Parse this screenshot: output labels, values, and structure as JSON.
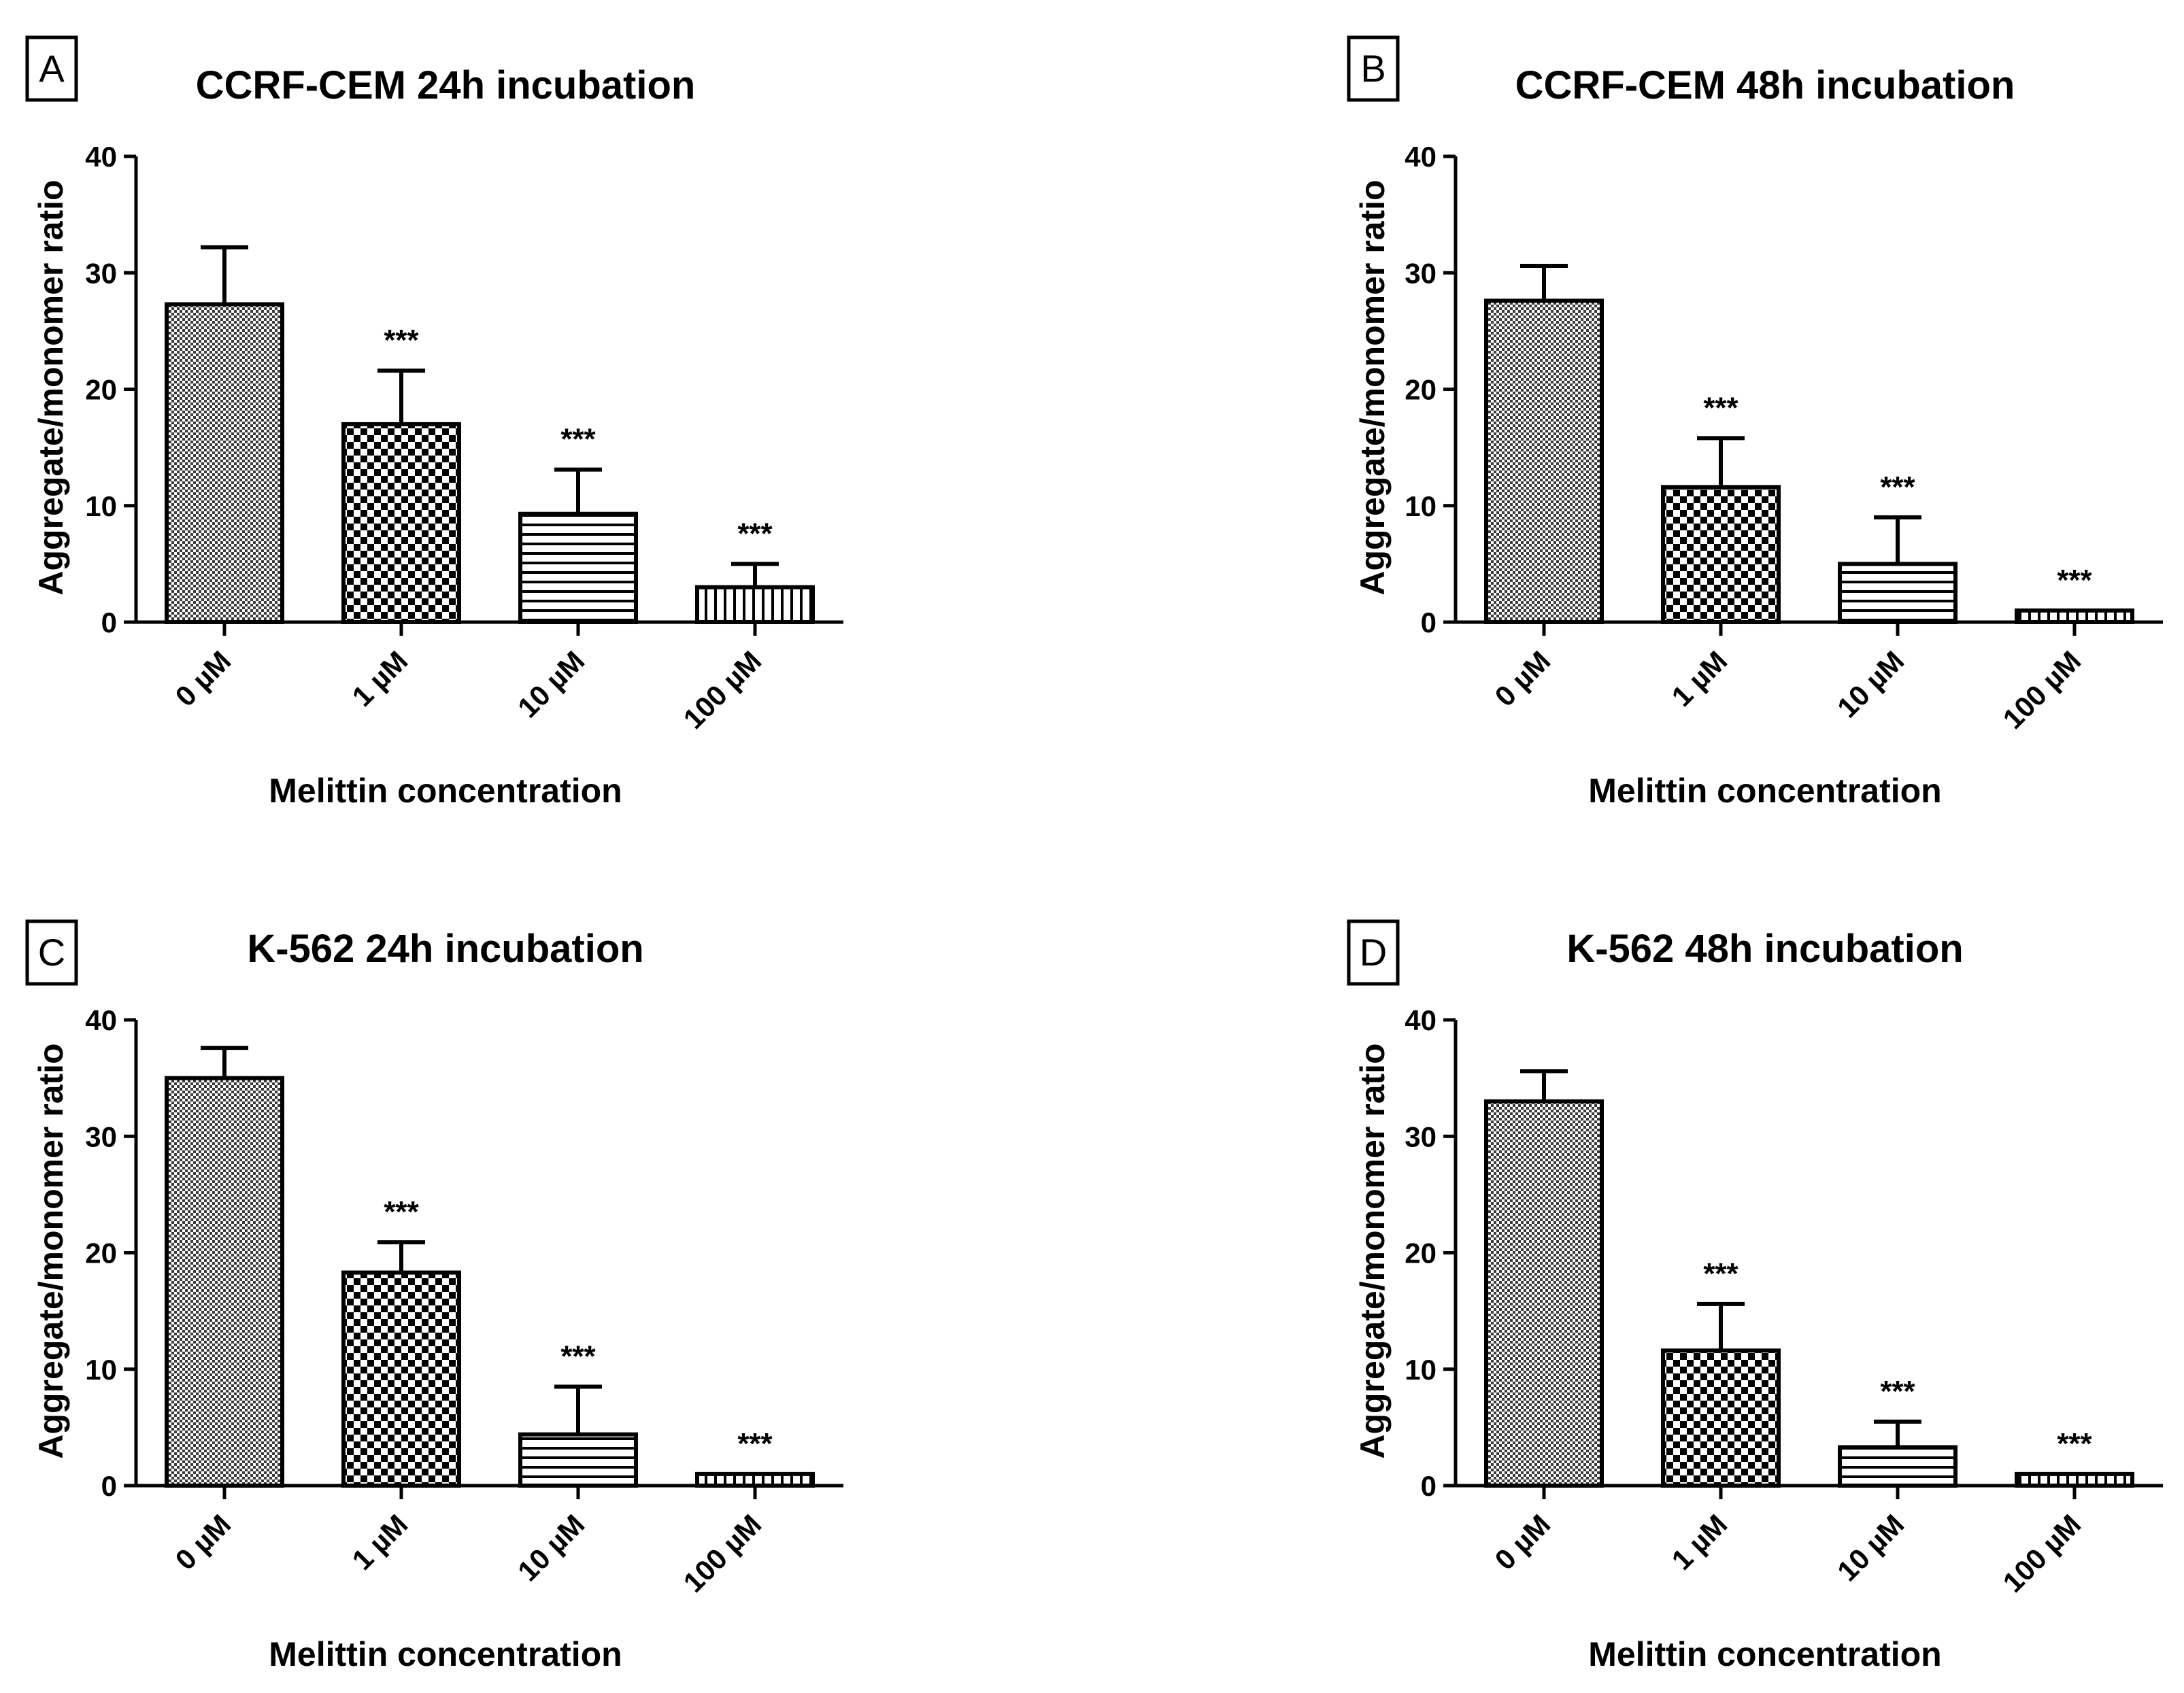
{
  "chart_data": [
    {
      "panel": "A",
      "type": "bar",
      "title": "CCRF-CEM 24h incubation",
      "xlabel": "Melittin concentration",
      "ylabel": "Aggregate/monomer ratio",
      "ylim": [
        0,
        40
      ],
      "yticks": [
        0,
        10,
        20,
        30,
        40
      ],
      "categories": [
        "0 µM",
        "1 µM",
        "10 µM",
        "100 µM"
      ],
      "values": [
        27.3,
        17.0,
        9.3,
        3.0
      ],
      "errors": [
        4.9,
        4.6,
        3.8,
        2.0
      ],
      "annotations": [
        "",
        "***",
        "***",
        "***"
      ]
    },
    {
      "panel": "B",
      "type": "bar",
      "title": "CCRF-CEM 48h incubation",
      "xlabel": "Melittin concentration",
      "ylabel": "Aggregate/monomer ratio",
      "ylim": [
        0,
        40
      ],
      "yticks": [
        0,
        10,
        20,
        30,
        40
      ],
      "categories": [
        "0 µM",
        "1 µM",
        "10 µM",
        "100 µM"
      ],
      "values": [
        27.6,
        11.6,
        5.0,
        1.0
      ],
      "errors": [
        3.0,
        4.2,
        4.0,
        0
      ],
      "annotations": [
        "",
        "***",
        "***",
        "***"
      ]
    },
    {
      "panel": "C",
      "type": "bar",
      "title": "K-562 24h incubation",
      "xlabel": "Melittin concentration",
      "ylabel": "Aggregate/monomer ratio",
      "ylim": [
        0,
        40
      ],
      "yticks": [
        0,
        10,
        20,
        30,
        40
      ],
      "categories": [
        "0 µM",
        "1 µM",
        "10 µM",
        "100 µM"
      ],
      "values": [
        35.0,
        18.3,
        4.4,
        1.0
      ],
      "errors": [
        2.6,
        2.6,
        4.1,
        0
      ],
      "annotations": [
        "",
        "***",
        "***",
        "***"
      ]
    },
    {
      "panel": "D",
      "type": "bar",
      "title": "K-562 48h incubation",
      "xlabel": "Melittin concentration",
      "ylabel": "Aggregate/monomer ratio",
      "ylim": [
        0,
        40
      ],
      "yticks": [
        0,
        10,
        20,
        30,
        40
      ],
      "categories": [
        "0 µM",
        "1 µM",
        "10 µM",
        "100 µM"
      ],
      "values": [
        33.0,
        11.6,
        3.3,
        1.0
      ],
      "errors": [
        2.6,
        4.0,
        2.2,
        0
      ],
      "annotations": [
        "",
        "***",
        "***",
        "***"
      ]
    }
  ]
}
